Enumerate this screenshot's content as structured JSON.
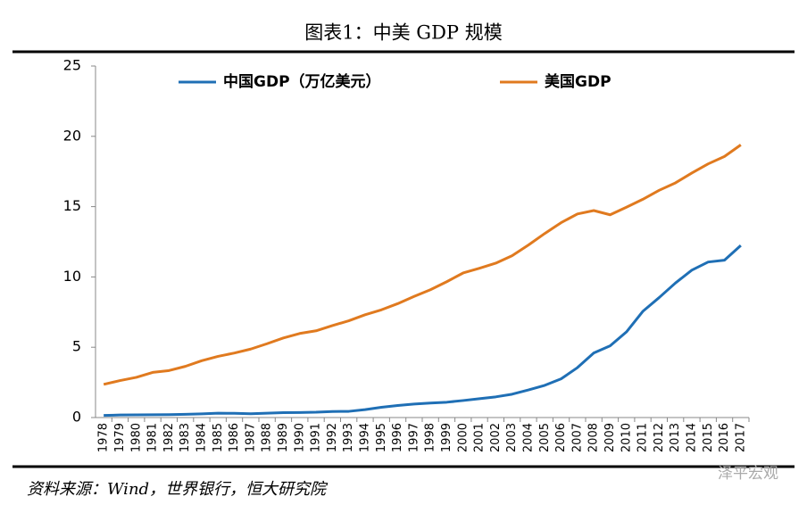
{
  "chart_data": {
    "type": "line",
    "title": "图表1：中美 GDP 规模",
    "source": "资料来源：Wind，世界银行，恒大研究院",
    "watermark": "泽平宏观",
    "categories": [
      "1978",
      "1979",
      "1980",
      "1981",
      "1982",
      "1983",
      "1984",
      "1985",
      "1986",
      "1987",
      "1988",
      "1989",
      "1990",
      "1991",
      "1992",
      "1993",
      "1994",
      "1995",
      "1996",
      "1997",
      "1998",
      "1999",
      "2000",
      "2001",
      "2002",
      "2003",
      "2004",
      "2005",
      "2006",
      "2007",
      "2008",
      "2009",
      "2010",
      "2011",
      "2012",
      "2013",
      "2014",
      "2015",
      "2016",
      "2017"
    ],
    "series": [
      {
        "name": "中国GDP（万亿美元）",
        "color": "#1f6fb5",
        "values": [
          0.15,
          0.18,
          0.19,
          0.2,
          0.21,
          0.23,
          0.26,
          0.31,
          0.3,
          0.27,
          0.31,
          0.35,
          0.36,
          0.38,
          0.43,
          0.44,
          0.56,
          0.73,
          0.86,
          0.96,
          1.03,
          1.09,
          1.21,
          1.34,
          1.47,
          1.66,
          1.96,
          2.29,
          2.75,
          3.55,
          4.59,
          5.1,
          6.09,
          7.55,
          8.53,
          9.57,
          10.48,
          11.06,
          11.19,
          12.24
        ]
      },
      {
        "name": "美国GDP",
        "color": "#e07a1f",
        "values": [
          2.36,
          2.63,
          2.86,
          3.21,
          3.34,
          3.64,
          4.04,
          4.35,
          4.59,
          4.87,
          5.25,
          5.66,
          5.98,
          6.17,
          6.54,
          6.88,
          7.31,
          7.66,
          8.1,
          8.61,
          9.09,
          9.66,
          10.28,
          10.62,
          10.98,
          11.51,
          12.27,
          13.09,
          13.86,
          14.48,
          14.72,
          14.42,
          14.96,
          15.52,
          16.16,
          16.69,
          17.39,
          18.04,
          18.57,
          19.39
        ]
      }
    ],
    "ylim": [
      0,
      25
    ],
    "yticks": [
      0,
      5,
      10,
      15,
      20,
      25
    ],
    "grid": false,
    "legend": "top"
  }
}
